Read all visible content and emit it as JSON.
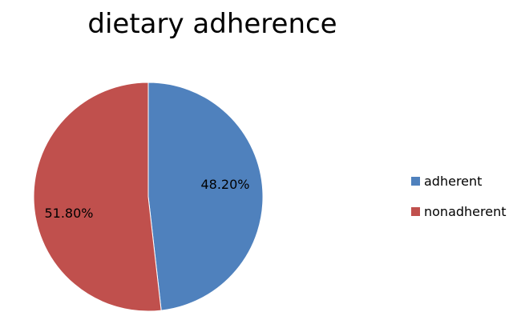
{
  "chart_data": {
    "type": "pie",
    "title": "dietary adherence",
    "series": [
      {
        "values": [
          48.2,
          51.8
        ]
      }
    ],
    "categories": [
      "adherent",
      "nonadherent"
    ],
    "values": [
      48.2,
      51.8
    ],
    "data_labels": [
      "48.20%",
      "51.80%"
    ],
    "colors": [
      "#4f81bd",
      "#c0504d"
    ],
    "legend_position": "right"
  }
}
